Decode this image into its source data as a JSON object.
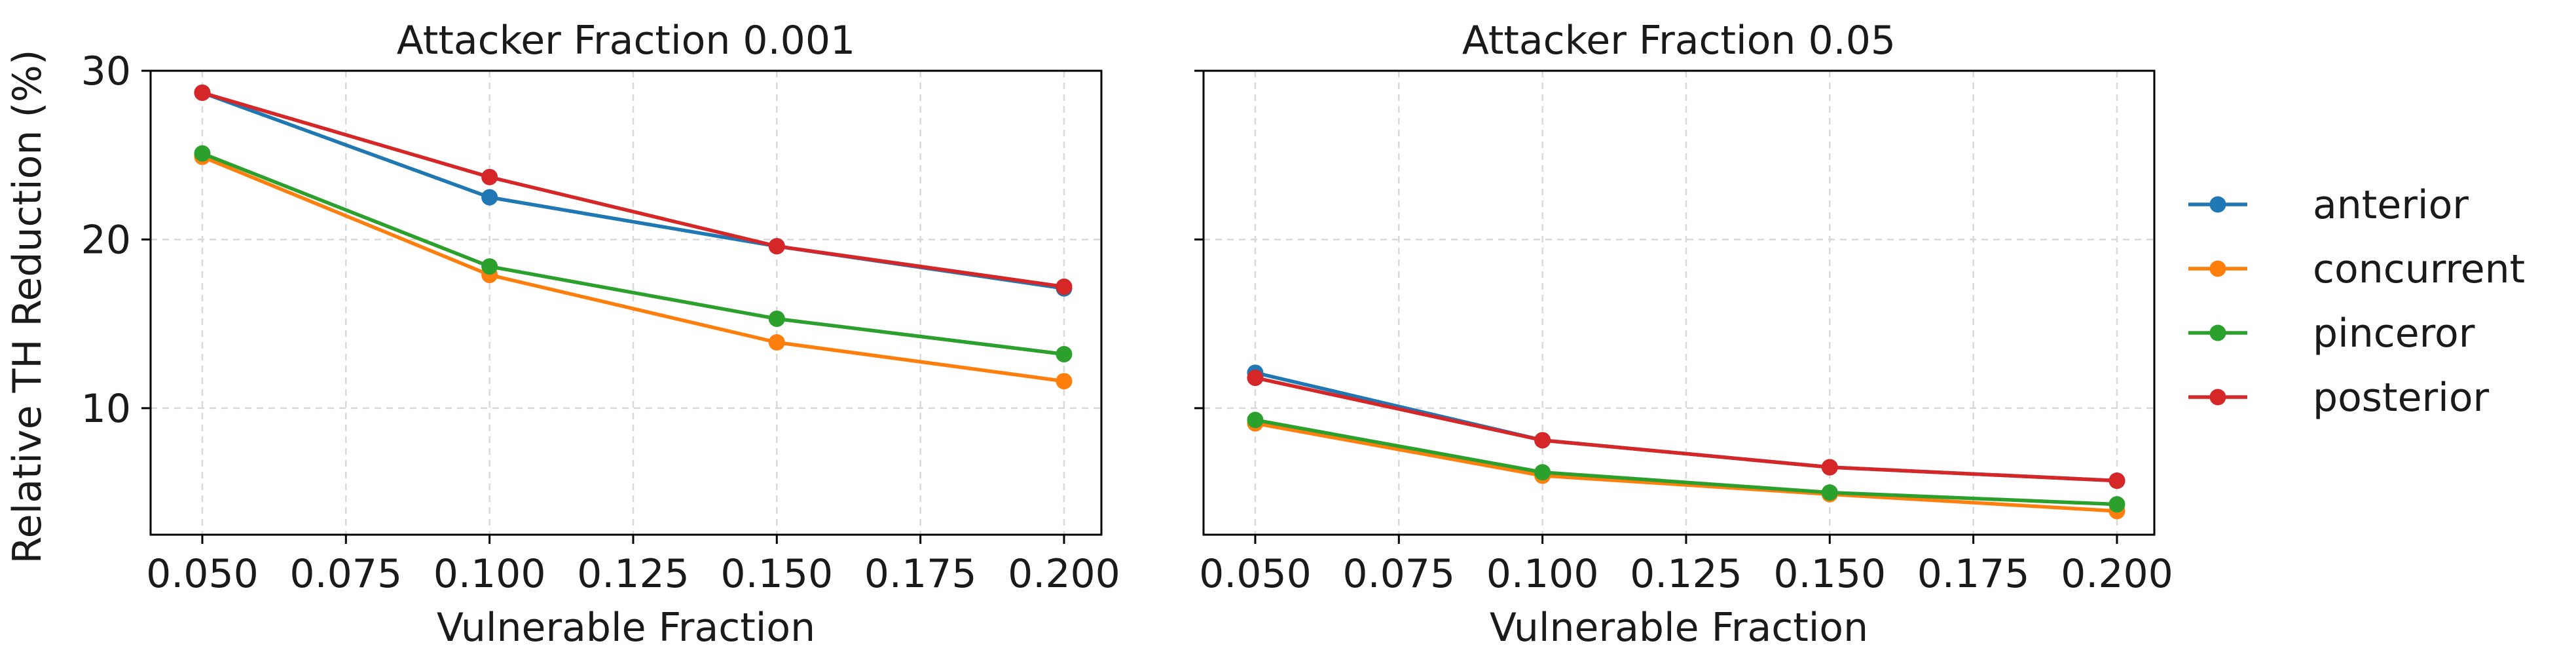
{
  "figure": {
    "ylabel": "Relative TH Reduction (%)",
    "legend_placement": "right"
  },
  "chart_data": [
    {
      "type": "line",
      "title": "Attacker Fraction 0.001",
      "xlabel": "Vulnerable Fraction",
      "ylabel": "Relative TH Reduction (%)",
      "xlim": [
        0.041,
        0.2065
      ],
      "ylim": [
        2.5,
        30
      ],
      "xticks": [
        0.05,
        0.075,
        0.1,
        0.125,
        0.15,
        0.175,
        0.2
      ],
      "xtick_labels": [
        "0.050",
        "0.075",
        "0.100",
        "0.125",
        "0.150",
        "0.175",
        "0.200"
      ],
      "yticks": [
        10,
        20,
        30
      ],
      "ytick_labels": [
        "10",
        "20",
        "30"
      ],
      "grid": true,
      "x": [
        0.05,
        0.1,
        0.15,
        0.2
      ],
      "series": [
        {
          "name": "anterior",
          "color": "#1f77b4",
          "values": [
            28.7,
            22.5,
            19.6,
            17.1
          ]
        },
        {
          "name": "concurrent",
          "color": "#ff7f0e",
          "values": [
            24.9,
            17.9,
            13.9,
            11.6
          ]
        },
        {
          "name": "pinceror",
          "color": "#2ca02c",
          "values": [
            25.1,
            18.4,
            15.3,
            13.2
          ]
        },
        {
          "name": "posterior",
          "color": "#d62728",
          "values": [
            28.7,
            23.7,
            19.6,
            17.2
          ]
        }
      ]
    },
    {
      "type": "line",
      "title": "Attacker Fraction 0.05",
      "xlabel": "Vulnerable Fraction",
      "ylabel": "",
      "xlim": [
        0.041,
        0.2065
      ],
      "ylim": [
        2.5,
        30
      ],
      "xticks": [
        0.05,
        0.075,
        0.1,
        0.125,
        0.15,
        0.175,
        0.2
      ],
      "xtick_labels": [
        "0.050",
        "0.075",
        "0.100",
        "0.125",
        "0.150",
        "0.175",
        "0.200"
      ],
      "yticks": [
        10,
        20,
        30
      ],
      "ytick_labels": [
        "",
        "",
        ""
      ],
      "grid": true,
      "x": [
        0.05,
        0.1,
        0.15,
        0.2
      ],
      "series": [
        {
          "name": "anterior",
          "color": "#1f77b4",
          "values": [
            12.1,
            8.1,
            6.5,
            5.7
          ]
        },
        {
          "name": "concurrent",
          "color": "#ff7f0e",
          "values": [
            9.1,
            6.0,
            4.9,
            3.9
          ]
        },
        {
          "name": "pinceror",
          "color": "#2ca02c",
          "values": [
            9.3,
            6.2,
            5.0,
            4.3
          ]
        },
        {
          "name": "posterior",
          "color": "#d62728",
          "values": [
            11.8,
            8.1,
            6.5,
            5.7
          ]
        }
      ]
    }
  ],
  "legend": {
    "items": [
      {
        "label": "anterior",
        "color": "#1f77b4"
      },
      {
        "label": "concurrent",
        "color": "#ff7f0e"
      },
      {
        "label": "pinceror",
        "color": "#2ca02c"
      },
      {
        "label": "posterior",
        "color": "#d62728"
      }
    ]
  }
}
